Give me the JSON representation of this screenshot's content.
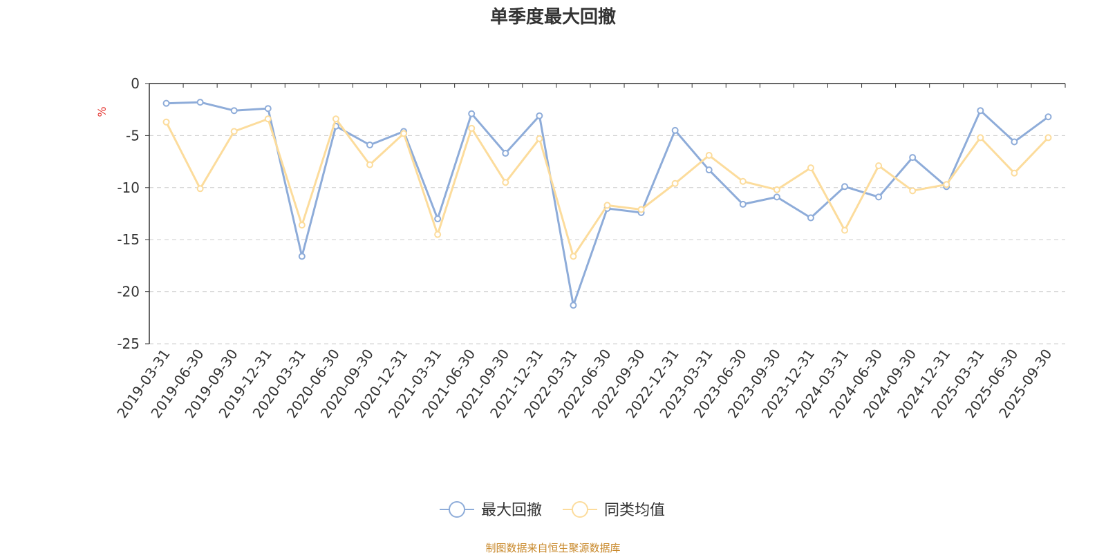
{
  "chart_data": {
    "type": "line",
    "title": "单季度最大回撤",
    "ylabel": "%",
    "ylim": [
      -25,
      0
    ],
    "yticks": [
      0,
      -5,
      -10,
      -15,
      -20,
      -25
    ],
    "grid": true,
    "legend_position": "bottom",
    "x": [
      "2019-03-31",
      "2019-06-30",
      "2019-09-30",
      "2019-12-31",
      "2020-03-31",
      "2020-06-30",
      "2020-09-30",
      "2020-12-31",
      "2021-03-31",
      "2021-06-30",
      "2021-09-30",
      "2021-12-31",
      "2022-03-31",
      "2022-06-30",
      "2022-09-30",
      "2022-12-31",
      "2023-03-31",
      "2023-06-30",
      "2023-09-30",
      "2023-12-31",
      "2024-03-31",
      "2024-06-30",
      "2024-09-30",
      "2024-12-31",
      "2025-03-31",
      "2025-06-30",
      "2025-09-30"
    ],
    "series": [
      {
        "name": "最大回撤",
        "color": "#8eacd9",
        "values": [
          -1.9,
          -1.8,
          -2.6,
          -2.4,
          -16.6,
          -4.1,
          -5.9,
          -4.6,
          -13.0,
          -2.9,
          -6.7,
          -3.1,
          -21.3,
          -12.0,
          -12.4,
          -4.5,
          -8.3,
          -11.6,
          -10.9,
          -12.9,
          -9.9,
          -10.9,
          -7.1,
          -9.9,
          -2.6,
          -5.6,
          -3.2
        ]
      },
      {
        "name": "同类均值",
        "color": "#fcdc9c",
        "values": [
          -3.7,
          -10.1,
          -4.6,
          -3.4,
          -13.6,
          -3.4,
          -7.8,
          -4.8,
          -14.5,
          -4.3,
          -9.5,
          -5.3,
          -16.6,
          -11.7,
          -12.1,
          -9.6,
          -6.9,
          -9.4,
          -10.2,
          -8.1,
          -14.1,
          -7.9,
          -10.3,
          -9.7,
          -5.2,
          -8.6,
          -5.2
        ]
      }
    ]
  },
  "footer": {
    "source": "制图数据来自恒生聚源数据库"
  }
}
